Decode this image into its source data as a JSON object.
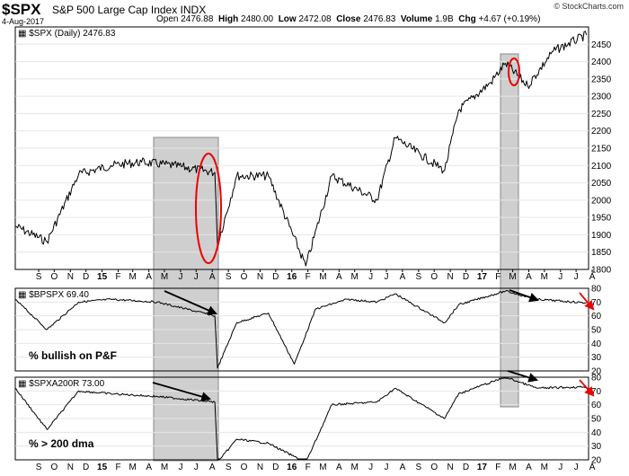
{
  "header": {
    "symbol": "$SPX",
    "description": "S&P 500 Large Cap Index INDX",
    "date": "4-Aug-2017",
    "open_label": "Open",
    "open": "2476.88",
    "high_label": "High",
    "high": "2480.00",
    "low_label": "Low",
    "low": "2472.08",
    "close_label": "Close",
    "close": "2476.83",
    "volume_label": "Volume",
    "volume": "1.9B",
    "chg_label": "Chg",
    "chg": "+4.67 (+0.19%)",
    "copyright": "© StockCharts.com"
  },
  "chart_data": [
    {
      "type": "line",
      "title": "$SPX (Daily) 2476.83",
      "ylim": [
        1800,
        2500
      ],
      "yticks": [
        1800,
        1850,
        1900,
        1950,
        2000,
        2050,
        2100,
        2150,
        2200,
        2250,
        2300,
        2350,
        2400,
        2450
      ],
      "x_labels": [
        "S",
        "O",
        "N",
        "D",
        "15",
        "F",
        "M",
        "A",
        "M",
        "J",
        "J",
        "A",
        "S",
        "O",
        "N",
        "D",
        "16",
        "F",
        "M",
        "A",
        "M",
        "J",
        "J",
        "A",
        "S",
        "O",
        "N",
        "D",
        "17",
        "F",
        "M",
        "A",
        "M",
        "J",
        "J",
        "A"
      ],
      "series": [
        {
          "x": [
            "2014-08",
            "2014-10",
            "2014-12",
            "2015-02",
            "2015-04",
            "2015-06",
            "2015-08-20",
            "2015-08-25",
            "2015-10",
            "2015-12",
            "2016-02-11",
            "2016-04",
            "2016-06-27",
            "2016-08",
            "2016-11-04",
            "2016-12",
            "2017-02",
            "2017-03-01",
            "2017-04-13",
            "2017-06",
            "2017-08-04"
          ],
          "values": [
            1925,
            1880,
            2075,
            2100,
            2110,
            2100,
            2080,
            1870,
            2070,
            2070,
            1810,
            2070,
            2000,
            2180,
            2085,
            2260,
            2340,
            2395,
            2330,
            2430,
            2477
          ]
        }
      ]
    },
    {
      "type": "line",
      "title": "$BPSPX 69.40",
      "annotation": "% bullish on P&F",
      "ylim": [
        20,
        80
      ],
      "yticks": [
        20,
        30,
        40,
        50,
        60,
        70,
        80
      ],
      "series": [
        {
          "x": [
            "2014-08",
            "2014-10",
            "2014-12",
            "2015-02",
            "2015-05",
            "2015-08-20",
            "2015-08-25",
            "2015-10",
            "2015-12",
            "2016-01-20",
            "2016-03",
            "2016-05",
            "2016-06-27",
            "2016-08",
            "2016-11-04",
            "2016-12",
            "2017-03",
            "2017-05",
            "2017-08-04"
          ],
          "values": [
            72,
            50,
            70,
            72,
            70,
            60,
            22,
            55,
            62,
            25,
            65,
            72,
            70,
            76,
            55,
            68,
            78,
            72,
            69.4
          ]
        }
      ]
    },
    {
      "type": "line",
      "title": "$SPXA200R 73.00",
      "annotation": "% > 200 dma",
      "ylim": [
        20,
        80
      ],
      "yticks": [
        20,
        30,
        40,
        50,
        60,
        70,
        80
      ],
      "series": [
        {
          "x": [
            "2014-08",
            "2014-10",
            "2014-12",
            "2015-02",
            "2015-05",
            "2015-08-20",
            "2015-08-25",
            "2015-10",
            "2015-12",
            "2016-02-11",
            "2016-04",
            "2016-06-27",
            "2016-08",
            "2016-11-04",
            "2016-12",
            "2017-03",
            "2017-05",
            "2017-08-04"
          ],
          "values": [
            72,
            42,
            70,
            68,
            66,
            62,
            18,
            35,
            32,
            18,
            60,
            62,
            72,
            50,
            68,
            80,
            72,
            73
          ]
        }
      ]
    }
  ]
}
